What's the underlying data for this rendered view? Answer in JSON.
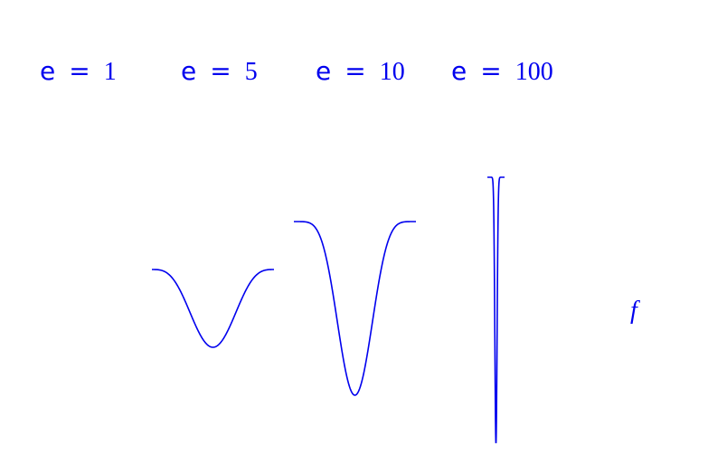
{
  "labels": [
    {
      "prefix": "e",
      "equals": "=",
      "value": "1"
    },
    {
      "prefix": "e",
      "equals": "=",
      "value": "5"
    },
    {
      "prefix": "e",
      "equals": "=",
      "value": "10"
    },
    {
      "prefix": "e",
      "equals": "=",
      "value": "100"
    }
  ],
  "function_label": "f",
  "colors": {
    "curve": "#0000ee",
    "text": "#0000ee",
    "background": "#ffffff"
  }
}
